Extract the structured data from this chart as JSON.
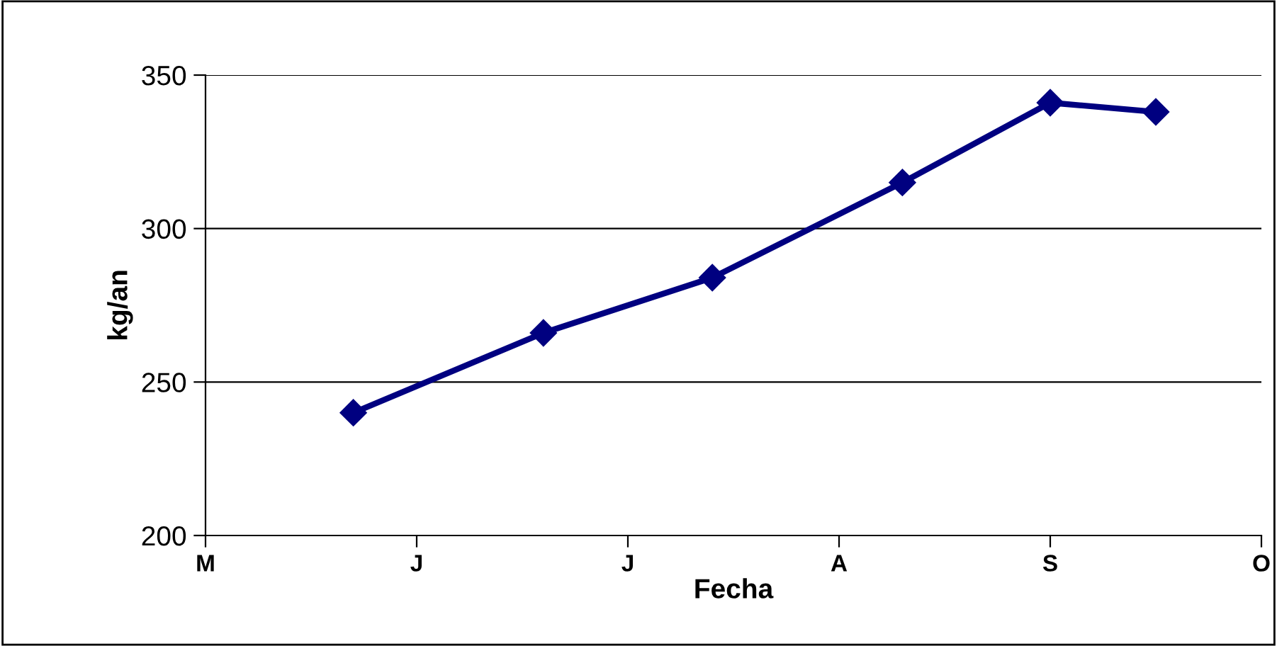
{
  "chart_data": {
    "type": "line",
    "xlabel": "Fecha",
    "ylabel": "kg/an",
    "categories": [
      "M",
      null,
      null,
      null,
      null,
      null,
      null,
      null,
      null,
      null,
      "J",
      null,
      null,
      null,
      null,
      null,
      null,
      null,
      null,
      null,
      "J",
      null,
      null,
      null,
      null,
      null,
      null,
      null,
      null,
      null,
      "A",
      null,
      null,
      null,
      null,
      null,
      null,
      null,
      null,
      null,
      "S",
      null,
      null,
      null,
      null,
      null,
      null,
      null,
      null,
      null,
      "O"
    ],
    "series": [
      {
        "color": "#000080",
        "values": [
          null,
          null,
          null,
          null,
          null,
          null,
          null,
          240,
          null,
          null,
          null,
          null,
          null,
          null,
          null,
          null,
          266,
          null,
          null,
          null,
          null,
          null,
          null,
          null,
          284,
          null,
          null,
          null,
          null,
          null,
          null,
          null,
          null,
          315,
          null,
          null,
          null,
          null,
          null,
          null,
          341,
          null,
          null,
          null,
          null,
          338,
          null,
          null,
          null,
          null,
          null
        ]
      }
    ],
    "ylim": [
      200,
      350
    ],
    "yticks": [
      200,
      250,
      300,
      350
    ],
    "grid": "y",
    "marker": "diamond",
    "line_style": "solid"
  }
}
